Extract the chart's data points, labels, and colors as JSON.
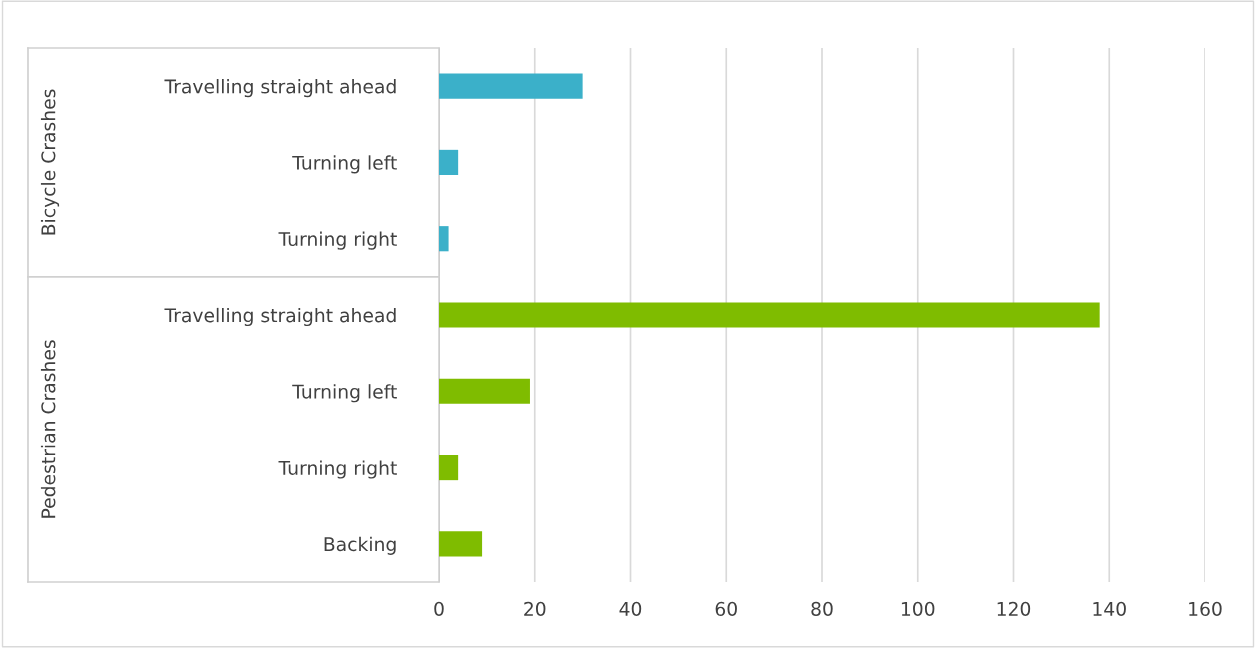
{
  "chart_data": {
    "type": "bar",
    "orientation": "horizontal",
    "categories": [
      "Travelling straight ahead",
      "Turning left",
      "Turning right",
      "Travelling straight ahead",
      "Turning left",
      "Turning right",
      "Backing"
    ],
    "series": [
      {
        "color": "#3bb0c9",
        "values": [
          30,
          4,
          2,
          null,
          null,
          null,
          null
        ]
      },
      {
        "color": "#7fbc00",
        "values": [
          null,
          null,
          null,
          138,
          19,
          4,
          9
        ]
      }
    ],
    "annotations": [
      "Bicycle Crashes",
      "Pedestrian Crashes"
    ],
    "xlim": [
      0,
      160
    ],
    "xticks": [
      0,
      20,
      40,
      60,
      80,
      100,
      120,
      140,
      160
    ],
    "grid": "x",
    "legend": false
  }
}
